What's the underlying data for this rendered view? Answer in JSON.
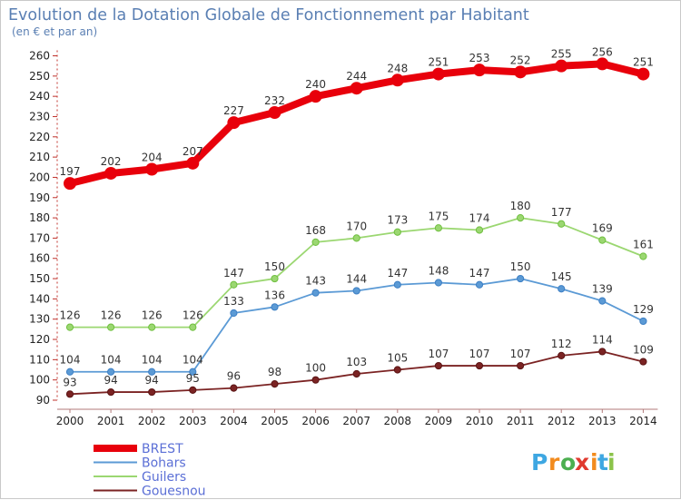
{
  "title": "Evolution de la Dotation Globale de Fonctionnement par Habitant",
  "subtitle": "(en € et par an)",
  "logo": {
    "letters": [
      "P",
      "r",
      "o",
      "x",
      "i",
      "t",
      "i"
    ],
    "colors": [
      "#3ea7e2",
      "#f28b1e",
      "#4caf50",
      "#e03a2f",
      "#f28b1e",
      "#3ea7e2",
      "#8bc34a"
    ]
  },
  "chart_data": {
    "type": "line",
    "title": "Evolution de la Dotation Globale de Fonctionnement par Habitant",
    "subtitle": "(en € et par an)",
    "x": [
      "2000",
      "2001",
      "2002",
      "2003",
      "2004",
      "2005",
      "2006",
      "2007",
      "2008",
      "2009",
      "2010",
      "2011",
      "2012",
      "2013",
      "2014"
    ],
    "ylim": [
      90,
      260
    ],
    "yticks": [
      90,
      100,
      110,
      120,
      130,
      140,
      150,
      160,
      170,
      180,
      190,
      200,
      210,
      220,
      230,
      240,
      250,
      260
    ],
    "grid": false,
    "legend_position": "bottom-left",
    "series": [
      {
        "name": "BREST",
        "color": "#e8000b",
        "values": [
          197,
          202,
          204,
          207,
          227,
          232,
          240,
          244,
          248,
          251,
          253,
          252,
          255,
          256,
          251
        ]
      },
      {
        "name": "Bohars",
        "color": "#5b9ad5",
        "values": [
          104,
          104,
          104,
          104,
          133,
          136,
          143,
          144,
          147,
          148,
          147,
          150,
          145,
          139,
          129
        ]
      },
      {
        "name": "Guilers",
        "color": "#9bd771",
        "values": [
          126,
          126,
          126,
          126,
          147,
          150,
          168,
          170,
          173,
          175,
          174,
          180,
          177,
          169,
          161
        ]
      },
      {
        "name": "Gouesnou",
        "color": "#7b2323",
        "values": [
          93,
          94,
          94,
          95,
          96,
          98,
          100,
          103,
          105,
          107,
          107,
          107,
          112,
          114,
          109
        ]
      }
    ]
  }
}
